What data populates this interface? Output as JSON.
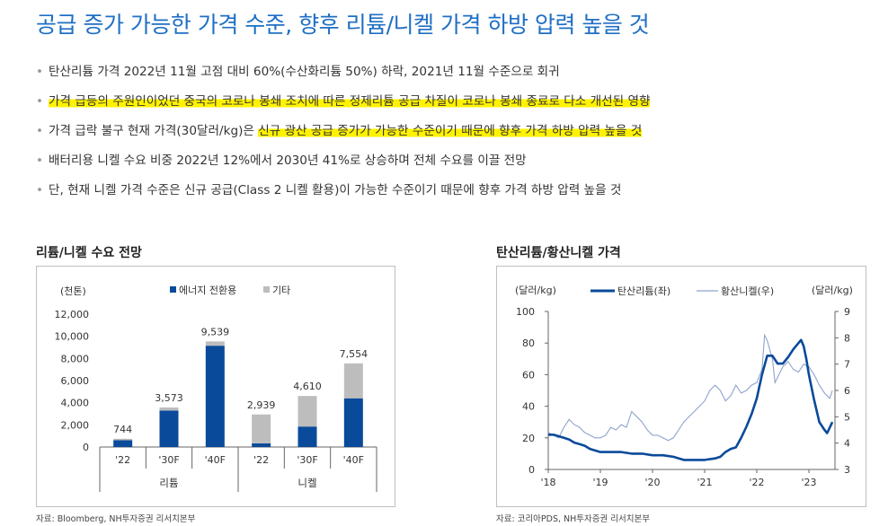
{
  "title": "공급 증가 가능한 가격 수준, 향후 리튬/니켈 가격 하방 압력 높을 것",
  "bullets": [
    {
      "pre": "탄산리튬 가격 2022년 11월 고점 대비 60%(수산화리튬 50%) 하락, 2021년 11월 수준으로 회귀",
      "hl": "",
      "post": ""
    },
    {
      "pre": "",
      "hl": "가격 급등의 주원인이었던 중국의 코로나 봉쇄 조치에 따른 정제리튬 공급 차질이 코로나 봉쇄 종료로 다소 개선된 영향",
      "post": ""
    },
    {
      "pre": "가격 급락 불구 현재 가격(30달러/kg)은 ",
      "hl": "신규 광산 공급 증가가 가능한 수준이기 때문에 향후 가격 하방 압력 높을 것",
      "post": ""
    },
    {
      "pre": "배터리용 니켈 수요 비중 2022년 12%에서 2030년 41%로 상승하며 전체 수요를 이끌 전망",
      "hl": "",
      "post": ""
    },
    {
      "pre": "단, 현재 니켈 가격 수준은 신규 공급(Class 2 니켈 활용)이 가능한 수준이기 때문에 향후 가격 하방 압력 높을 것",
      "hl": "",
      "post": ""
    }
  ],
  "chart_left_title": "리튬/니켈 수요 전망",
  "chart_right_title": "탄산리튬/황산니켈 가격",
  "source_left": "자료: Bloomberg, NH투자증권 리서치본부",
  "source_right": "자료: 코리아PDS, NH투자증권 리서치본부",
  "colors": {
    "energy": "#0a4a9a",
    "other": "#bdbdbd",
    "lithium_line": "#0a4a9a",
    "nickel_line": "#8fa3cc",
    "title": "#1f6fc4",
    "highlight": "#fff200"
  },
  "chart_data": [
    {
      "type": "bar",
      "stacked": true,
      "ylabel": "(천톤)",
      "ylim": [
        0,
        12000
      ],
      "yticks": [
        "0",
        "2,000",
        "4,000",
        "6,000",
        "8,000",
        "10,000",
        "12,000"
      ],
      "categories": [
        "'22",
        "'30F",
        "'40F",
        "'22",
        "'30F",
        "'40F"
      ],
      "groups": [
        "리튬",
        "니켈"
      ],
      "legend": [
        "에너지 전환용",
        "기타"
      ],
      "series": [
        {
          "name": "에너지 전환용",
          "values": [
            620,
            3300,
            9150,
            330,
            1850,
            4400
          ]
        },
        {
          "name": "기타",
          "values": [
            124,
            273,
            389,
            2609,
            2760,
            3154
          ]
        }
      ],
      "totals": [
        "744",
        "3,573",
        "9,539",
        "2,939",
        "4,610",
        "7,554"
      ]
    },
    {
      "type": "line",
      "ylabel_left": "(달러/kg)",
      "ylabel_right": "(달러/kg)",
      "ylim_left": [
        0,
        100
      ],
      "ylim_right": [
        3,
        9
      ],
      "yticks_left": [
        "0",
        "20",
        "40",
        "60",
        "80",
        "100"
      ],
      "yticks_right": [
        "3",
        "4",
        "5",
        "6",
        "7",
        "8",
        "9"
      ],
      "xticks": [
        "'18",
        "'19",
        "'20",
        "'21",
        "'22",
        "'23"
      ],
      "xlim": [
        2018.0,
        2023.5
      ],
      "legend": [
        "탄산리튬(좌)",
        "황산니켈(우)"
      ],
      "series": [
        {
          "name": "탄산리튬(좌)",
          "axis": "left",
          "x": [
            2018.0,
            2018.1,
            2018.2,
            2018.3,
            2018.4,
            2018.5,
            2018.6,
            2018.7,
            2018.8,
            2018.9,
            2019.0,
            2019.2,
            2019.4,
            2019.6,
            2019.8,
            2020.0,
            2020.2,
            2020.4,
            2020.6,
            2020.8,
            2021.0,
            2021.2,
            2021.3,
            2021.4,
            2021.5,
            2021.6,
            2021.7,
            2021.8,
            2021.9,
            2022.0,
            2022.1,
            2022.2,
            2022.3,
            2022.4,
            2022.5,
            2022.6,
            2022.7,
            2022.8,
            2022.85,
            2022.9,
            2022.95,
            2023.0,
            2023.1,
            2023.2,
            2023.3,
            2023.35,
            2023.45
          ],
          "y": [
            22,
            22,
            21,
            20,
            19,
            17,
            16,
            15,
            13,
            12,
            11,
            11,
            11,
            10,
            10,
            9,
            9,
            8,
            6,
            6,
            6,
            7,
            8,
            11,
            13,
            14,
            20,
            27,
            35,
            45,
            60,
            72,
            72,
            67,
            67,
            71,
            76,
            80,
            82,
            78,
            70,
            60,
            44,
            30,
            25,
            23,
            30
          ]
        },
        {
          "name": "황산니켈(우)",
          "axis": "right",
          "x": [
            2018.0,
            2018.1,
            2018.2,
            2018.3,
            2018.4,
            2018.5,
            2018.6,
            2018.7,
            2018.8,
            2018.9,
            2019.0,
            2019.1,
            2019.2,
            2019.3,
            2019.4,
            2019.5,
            2019.6,
            2019.7,
            2019.8,
            2019.9,
            2020.0,
            2020.1,
            2020.2,
            2020.3,
            2020.4,
            2020.5,
            2020.6,
            2020.7,
            2020.8,
            2020.9,
            2021.0,
            2021.1,
            2021.2,
            2021.3,
            2021.4,
            2021.5,
            2021.6,
            2021.7,
            2021.8,
            2021.9,
            2022.0,
            2022.1,
            2022.15,
            2022.2,
            2022.3,
            2022.35,
            2022.4,
            2022.5,
            2022.6,
            2022.7,
            2022.8,
            2022.9,
            2023.0,
            2023.1,
            2023.2,
            2023.3,
            2023.4,
            2023.45
          ],
          "y": [
            4.4,
            4.3,
            4.2,
            4.6,
            4.9,
            4.7,
            4.6,
            4.4,
            4.3,
            4.2,
            4.2,
            4.3,
            4.6,
            4.5,
            4.7,
            4.6,
            5.2,
            5.0,
            4.8,
            4.5,
            4.3,
            4.3,
            4.2,
            4.1,
            4.2,
            4.5,
            4.8,
            5.0,
            5.2,
            5.4,
            5.6,
            6.0,
            6.2,
            6.0,
            5.6,
            5.8,
            6.2,
            5.9,
            6.0,
            6.2,
            6.3,
            6.8,
            8.1,
            7.9,
            7.2,
            6.3,
            6.5,
            6.9,
            7.1,
            6.8,
            6.7,
            7.0,
            6.9,
            6.6,
            6.2,
            5.9,
            5.7,
            6.0
          ]
        }
      ]
    }
  ]
}
